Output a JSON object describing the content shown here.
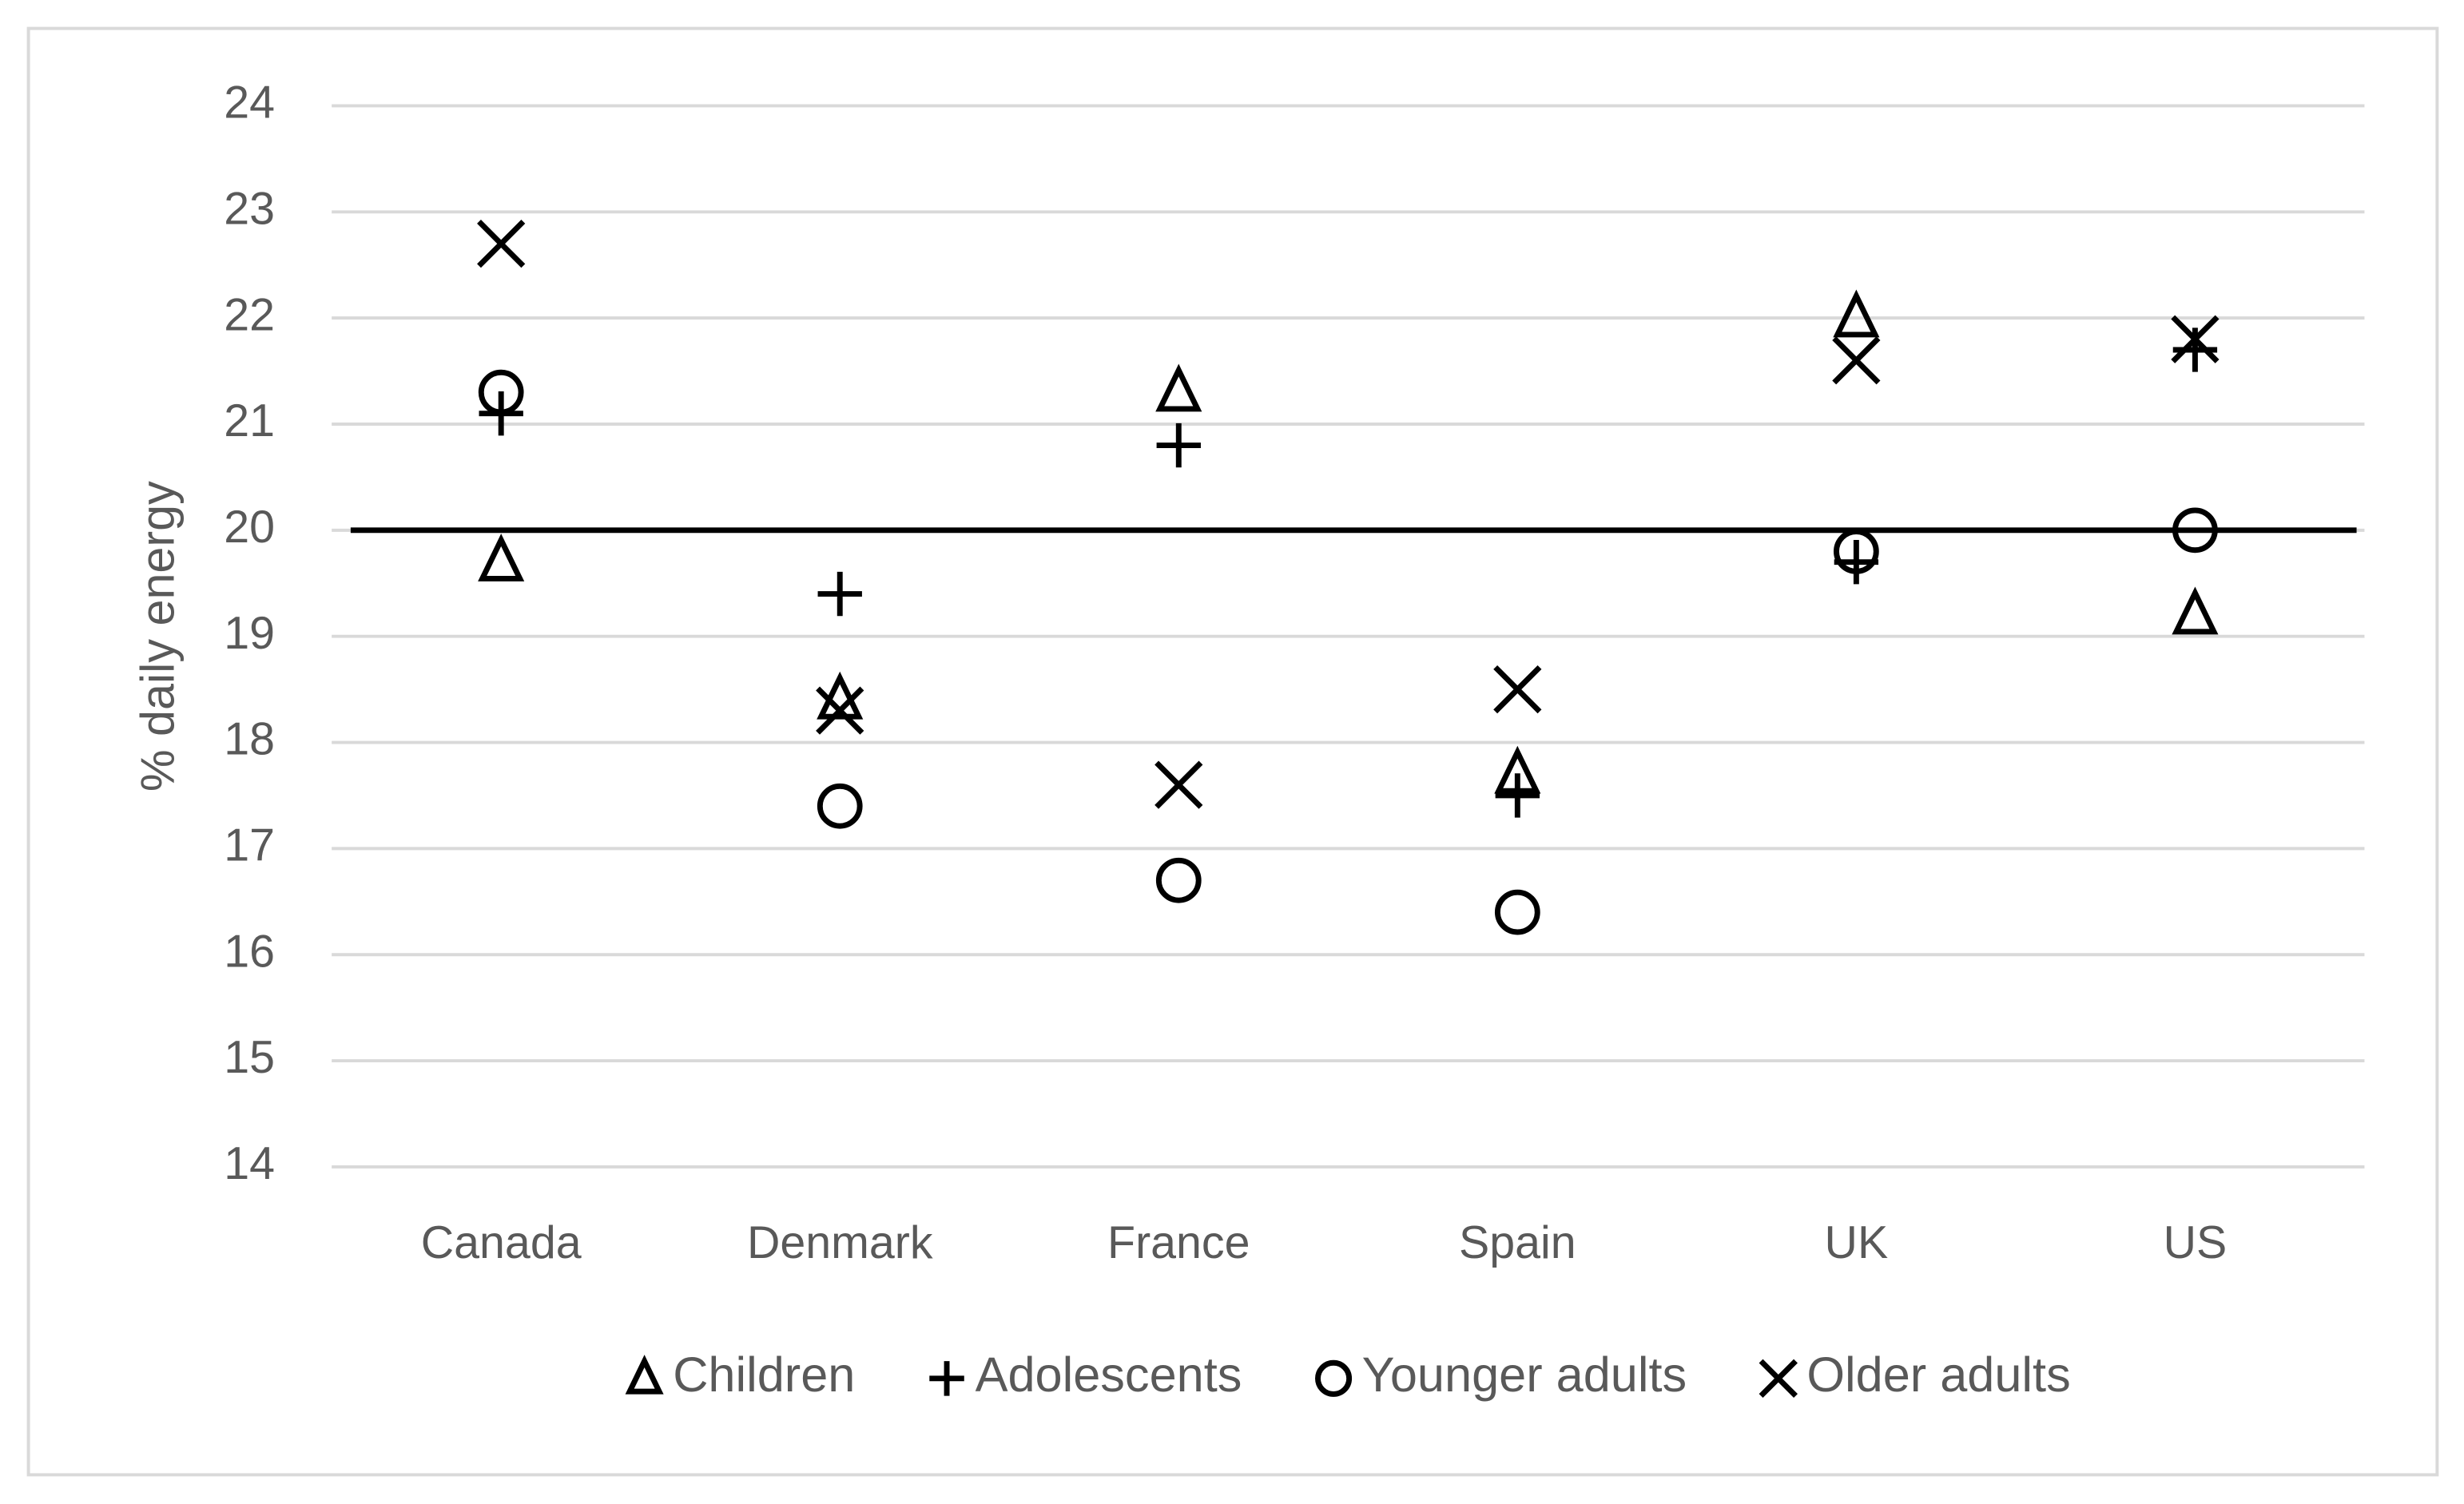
{
  "chart_data": {
    "type": "scatter",
    "y_label": "% daily energy",
    "categories": [
      "Canada",
      "Denmark",
      "France",
      "Spain",
      "UK",
      "US"
    ],
    "series": [
      {
        "name": "Children",
        "marker": "triangle",
        "color": "#000000",
        "values": [
          19.7,
          18.4,
          21.3,
          17.7,
          22.0,
          19.2
        ]
      },
      {
        "name": "Adolescents",
        "marker": "plus",
        "color": "#000000",
        "values": [
          21.1,
          19.4,
          20.8,
          17.5,
          19.7,
          21.7
        ]
      },
      {
        "name": "Younger adults",
        "marker": "circle",
        "color": "#000000",
        "values": [
          21.3,
          17.4,
          16.7,
          16.4,
          19.8,
          20.0
        ]
      },
      {
        "name": "Older adults",
        "marker": "cross",
        "color": "#000000",
        "values": [
          22.7,
          18.3,
          17.6,
          18.5,
          21.6,
          21.8
        ]
      }
    ],
    "reference_line": 20,
    "ylim": [
      14,
      24
    ],
    "yticks": [
      14,
      15,
      16,
      17,
      18,
      19,
      20,
      21,
      22,
      23,
      24
    ],
    "grid": true,
    "legend": "bottom"
  }
}
